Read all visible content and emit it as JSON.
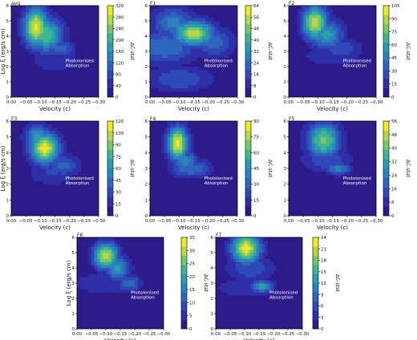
{
  "figure": {
    "colormap": [
      "#2d1b8a",
      "#2e2fa8",
      "#2f49b8",
      "#2e66be",
      "#2a83bd",
      "#2a9eae",
      "#41b58f",
      "#78c86b",
      "#b6d74a",
      "#ecea2a"
    ],
    "background_color": "#2d1b8a"
  },
  "chart_data": [
    {
      "type": "heatmap",
      "title": "avg",
      "xlabel": "Velocity (c)",
      "ylabel": "Log ξ (erg/s cm)",
      "colorbar_label": "ΔC-stat",
      "xlim": [
        0.0,
        -0.3
      ],
      "ylim": [
        0,
        6
      ],
      "xticks": [
        "0.00",
        "−0.05",
        "−0.10",
        "−0.15",
        "−0.20",
        "−0.25",
        "−0.30"
      ],
      "yticks": [
        "0",
        "1",
        "2",
        "3",
        "4",
        "5",
        "6"
      ],
      "colorbar_ticks": [
        "0",
        "40",
        "80",
        "120",
        "160",
        "200",
        "240",
        "280",
        "320"
      ],
      "zmax": 320,
      "annotation": [
        "Photoionised",
        "Absorption"
      ],
      "peaks": [
        {
          "v": -0.085,
          "logxi": 4.6,
          "z": 0.95,
          "sv": 0.03,
          "sx": 0.9
        },
        {
          "v": -0.12,
          "logxi": 4.1,
          "z": 0.7,
          "sv": 0.04,
          "sx": 0.8
        },
        {
          "v": -0.17,
          "logxi": 3.2,
          "z": 0.35,
          "sv": 0.035,
          "sx": 0.4
        },
        {
          "v": -0.15,
          "logxi": 2.5,
          "z": 0.2,
          "sv": 0.06,
          "sx": 0.6
        }
      ]
    },
    {
      "type": "heatmap",
      "title": "F1",
      "xlabel": "Velocity (c)",
      "ylabel": "",
      "colorbar_label": "ΔC-stat",
      "xlim": [
        0.0,
        -0.3
      ],
      "ylim": [
        0,
        6
      ],
      "xticks": [
        "0.00",
        "−0.05",
        "−0.10",
        "−0.15",
        "−0.20",
        "−0.25",
        "−0.30"
      ],
      "yticks": [
        "0",
        "1",
        "2",
        "3",
        "4",
        "5",
        "6"
      ],
      "colorbar_ticks": [
        "0",
        "8",
        "16",
        "24",
        "32",
        "40",
        "48",
        "56",
        "64"
      ],
      "zmax": 64,
      "annotation": [
        "Photoionised",
        "Absorption"
      ],
      "peaks": [
        {
          "v": -0.15,
          "logxi": 4.2,
          "z": 0.85,
          "sv": 0.05,
          "sx": 0.6
        },
        {
          "v": -0.08,
          "logxi": 4.9,
          "z": 0.45,
          "sv": 0.05,
          "sx": 0.7
        },
        {
          "v": -0.05,
          "logxi": 3.3,
          "z": 0.4,
          "sv": 0.08,
          "sx": 0.8
        },
        {
          "v": -0.1,
          "logxi": 1.2,
          "z": 0.3,
          "sv": 0.08,
          "sx": 0.6
        },
        {
          "v": -0.22,
          "logxi": 3.6,
          "z": 0.35,
          "sv": 0.05,
          "sx": 0.7
        }
      ]
    },
    {
      "type": "heatmap",
      "title": "F2",
      "xlabel": "Velocity (c)",
      "ylabel": "",
      "colorbar_label": "ΔC-stat",
      "xlim": [
        0.0,
        -0.3
      ],
      "ylim": [
        0,
        6
      ],
      "xticks": [
        "0.00",
        "−0.05",
        "−0.10",
        "−0.15",
        "−0.20",
        "−0.25",
        "−0.30"
      ],
      "yticks": [
        "0",
        "1",
        "2",
        "3",
        "4",
        "5",
        "6"
      ],
      "colorbar_ticks": [
        "0",
        "15",
        "30",
        "45",
        "60",
        "75",
        "90",
        "105"
      ],
      "zmax": 105,
      "annotation": [
        "Photoionised",
        "Absorption"
      ],
      "peaks": [
        {
          "v": -0.09,
          "logxi": 4.9,
          "z": 0.9,
          "sv": 0.03,
          "sx": 0.8
        },
        {
          "v": -0.13,
          "logxi": 4.1,
          "z": 0.55,
          "sv": 0.04,
          "sx": 0.7
        },
        {
          "v": -0.18,
          "logxi": 3.2,
          "z": 0.3,
          "sv": 0.05,
          "sx": 0.5
        },
        {
          "v": -0.15,
          "logxi": 2.7,
          "z": 0.18,
          "sv": 0.08,
          "sx": 0.5
        }
      ]
    },
    {
      "type": "heatmap",
      "title": "F3",
      "xlabel": "Velocity (c)",
      "ylabel": "Log ξ (erg/s cm)",
      "colorbar_label": "ΔC-stat",
      "xlim": [
        0.0,
        -0.3
      ],
      "ylim": [
        0,
        6
      ],
      "xticks": [
        "0.00",
        "−0.05",
        "−0.10",
        "−0.15",
        "−0.20",
        "−0.25",
        "−0.30"
      ],
      "yticks": [
        "0",
        "1",
        "2",
        "3",
        "4",
        "5",
        "6"
      ],
      "colorbar_ticks": [
        "0",
        "15",
        "30",
        "45",
        "60",
        "75",
        "90",
        "105",
        "120"
      ],
      "zmax": 120,
      "annotation": [
        "Photoionised",
        "Absorption"
      ],
      "peaks": [
        {
          "v": -0.115,
          "logxi": 4.3,
          "z": 0.95,
          "sv": 0.035,
          "sx": 0.7
        },
        {
          "v": -0.09,
          "logxi": 5.0,
          "z": 0.55,
          "sv": 0.03,
          "sx": 0.6
        },
        {
          "v": -0.18,
          "logxi": 3.2,
          "z": 0.35,
          "sv": 0.04,
          "sx": 0.5
        },
        {
          "v": -0.14,
          "logxi": 2.8,
          "z": 0.22,
          "sv": 0.06,
          "sx": 0.6
        }
      ]
    },
    {
      "type": "heatmap",
      "title": "F4",
      "xlabel": "Velocity (c)",
      "ylabel": "",
      "colorbar_label": "ΔC-stat",
      "xlim": [
        0.0,
        -0.3
      ],
      "ylim": [
        0,
        6
      ],
      "xticks": [
        "0.00",
        "−0.05",
        "−0.10",
        "−0.15",
        "−0.20",
        "−0.25",
        "−0.30"
      ],
      "yticks": [
        "0",
        "1",
        "2",
        "3",
        "4",
        "5",
        "6"
      ],
      "colorbar_ticks": [
        "0",
        "15",
        "30",
        "45",
        "60",
        "75",
        "90"
      ],
      "zmax": 90,
      "annotation": [
        "Photoionised",
        "Absorption"
      ],
      "peaks": [
        {
          "v": -0.095,
          "logxi": 4.6,
          "z": 0.95,
          "sv": 0.025,
          "sx": 0.75
        },
        {
          "v": -0.12,
          "logxi": 3.5,
          "z": 0.5,
          "sv": 0.03,
          "sx": 0.4
        },
        {
          "v": -0.14,
          "logxi": 3.0,
          "z": 0.4,
          "sv": 0.05,
          "sx": 0.4
        }
      ]
    },
    {
      "type": "heatmap",
      "title": "F5",
      "xlabel": "Velocity (c)",
      "ylabel": "",
      "colorbar_label": "ΔC-stat",
      "xlim": [
        0.0,
        -0.3
      ],
      "ylim": [
        0,
        6
      ],
      "xticks": [
        "0.00",
        "−0.05",
        "−0.10",
        "−0.15",
        "−0.20",
        "−0.25",
        "−0.30"
      ],
      "yticks": [
        "0",
        "1",
        "2",
        "3",
        "4",
        "5",
        "6"
      ],
      "colorbar_ticks": [
        "0",
        "8",
        "16",
        "24",
        "32",
        "40",
        "48",
        "56"
      ],
      "zmax": 56,
      "annotation": [
        "Photoionised",
        "Absorption"
      ],
      "peaks": [
        {
          "v": -0.12,
          "logxi": 4.8,
          "z": 0.75,
          "sv": 0.04,
          "sx": 0.8
        },
        {
          "v": -0.17,
          "logxi": 3.0,
          "z": 0.45,
          "sv": 0.03,
          "sx": 0.3
        },
        {
          "v": -0.13,
          "logxi": 3.6,
          "z": 0.3,
          "sv": 0.06,
          "sx": 0.6
        }
      ]
    },
    {
      "type": "heatmap",
      "title": "F6",
      "xlabel": "Velocity (c)",
      "ylabel": "Log ξ (erg/s cm)",
      "colorbar_label": "ΔC-stat",
      "xlim": [
        0.0,
        -0.3
      ],
      "ylim": [
        0,
        6
      ],
      "xticks": [
        "0.00",
        "−0.05",
        "−0.10",
        "−0.15",
        "−0.20",
        "−0.25",
        "−0.30"
      ],
      "yticks": [
        "0",
        "1",
        "2",
        "3",
        "4",
        "5",
        "6"
      ],
      "colorbar_ticks": [
        "0",
        "5",
        "10",
        "15",
        "20",
        "25",
        "30",
        "35"
      ],
      "zmax": 35,
      "annotation": [
        "Photoionised",
        "Absorption"
      ],
      "peaks": [
        {
          "v": -0.1,
          "logxi": 4.8,
          "z": 0.9,
          "sv": 0.03,
          "sx": 0.6
        },
        {
          "v": -0.14,
          "logxi": 4.0,
          "z": 0.55,
          "sv": 0.03,
          "sx": 0.6
        },
        {
          "v": -0.18,
          "logxi": 3.0,
          "z": 0.4,
          "sv": 0.03,
          "sx": 0.4
        },
        {
          "v": -0.1,
          "logxi": 3.0,
          "z": 0.2,
          "sv": 0.09,
          "sx": 0.5
        }
      ]
    },
    {
      "type": "heatmap",
      "title": "F7",
      "xlabel": "Velocity (c)",
      "ylabel": "",
      "colorbar_label": "ΔC-stat",
      "xlim": [
        0.0,
        -0.3
      ],
      "ylim": [
        0,
        6
      ],
      "xticks": [
        "0.00",
        "−0.05",
        "−0.10",
        "−0.15",
        "−0.20",
        "−0.25",
        "−0.30"
      ],
      "yticks": [
        "0",
        "1",
        "2",
        "3",
        "4",
        "5",
        "6"
      ],
      "colorbar_ticks": [
        "0",
        "3",
        "6",
        "9",
        "12",
        "15",
        "18",
        "21",
        "24"
      ],
      "zmax": 24,
      "annotation": [
        "Photoionised",
        "Absorption"
      ],
      "peaks": [
        {
          "v": -0.105,
          "logxi": 5.3,
          "z": 0.95,
          "sv": 0.035,
          "sx": 0.7
        },
        {
          "v": -0.16,
          "logxi": 2.8,
          "z": 0.55,
          "sv": 0.03,
          "sx": 0.3
        },
        {
          "v": -0.12,
          "logxi": 4.0,
          "z": 0.3,
          "sv": 0.06,
          "sx": 0.6
        },
        {
          "v": -0.1,
          "logxi": 2.7,
          "z": 0.18,
          "sv": 0.08,
          "sx": 0.5
        }
      ]
    }
  ]
}
